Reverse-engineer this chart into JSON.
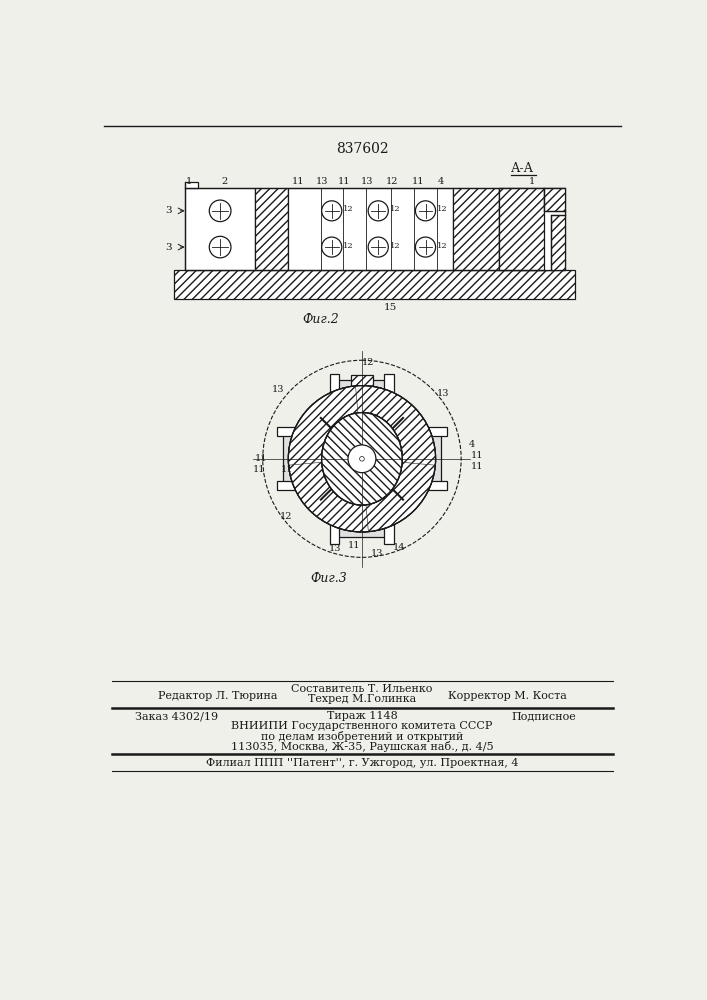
{
  "patent_number": "837602",
  "background_color": "#f0f0eb",
  "line_color": "#1a1a1a",
  "fig2_label": "Фиг.2",
  "fig3_label": "Фиг.3",
  "aa_label": "А-А",
  "footer_line1_left": "Редактор Л. Тюрина",
  "footer_line1_center_top": "Составитель Т. Ильенко",
  "footer_line1_center_bot": "Техред М.Голинка",
  "footer_line1_right": "Корректор М. Коста",
  "footer_line2_left": "Заказ 4302/19",
  "footer_line2_center": "Тираж 1148",
  "footer_line2_right": "Подписное",
  "footer_line3": "ВНИИПИ Государственного комитета СССР",
  "footer_line4": "по делам изобретений и открытий",
  "footer_line5": "113035, Москва, Ж-35, Раушская наб., д. 4/5",
  "footer_line6": "Филиал ППП ''Патент'', г. Ужгород, ул. Проектная, 4"
}
